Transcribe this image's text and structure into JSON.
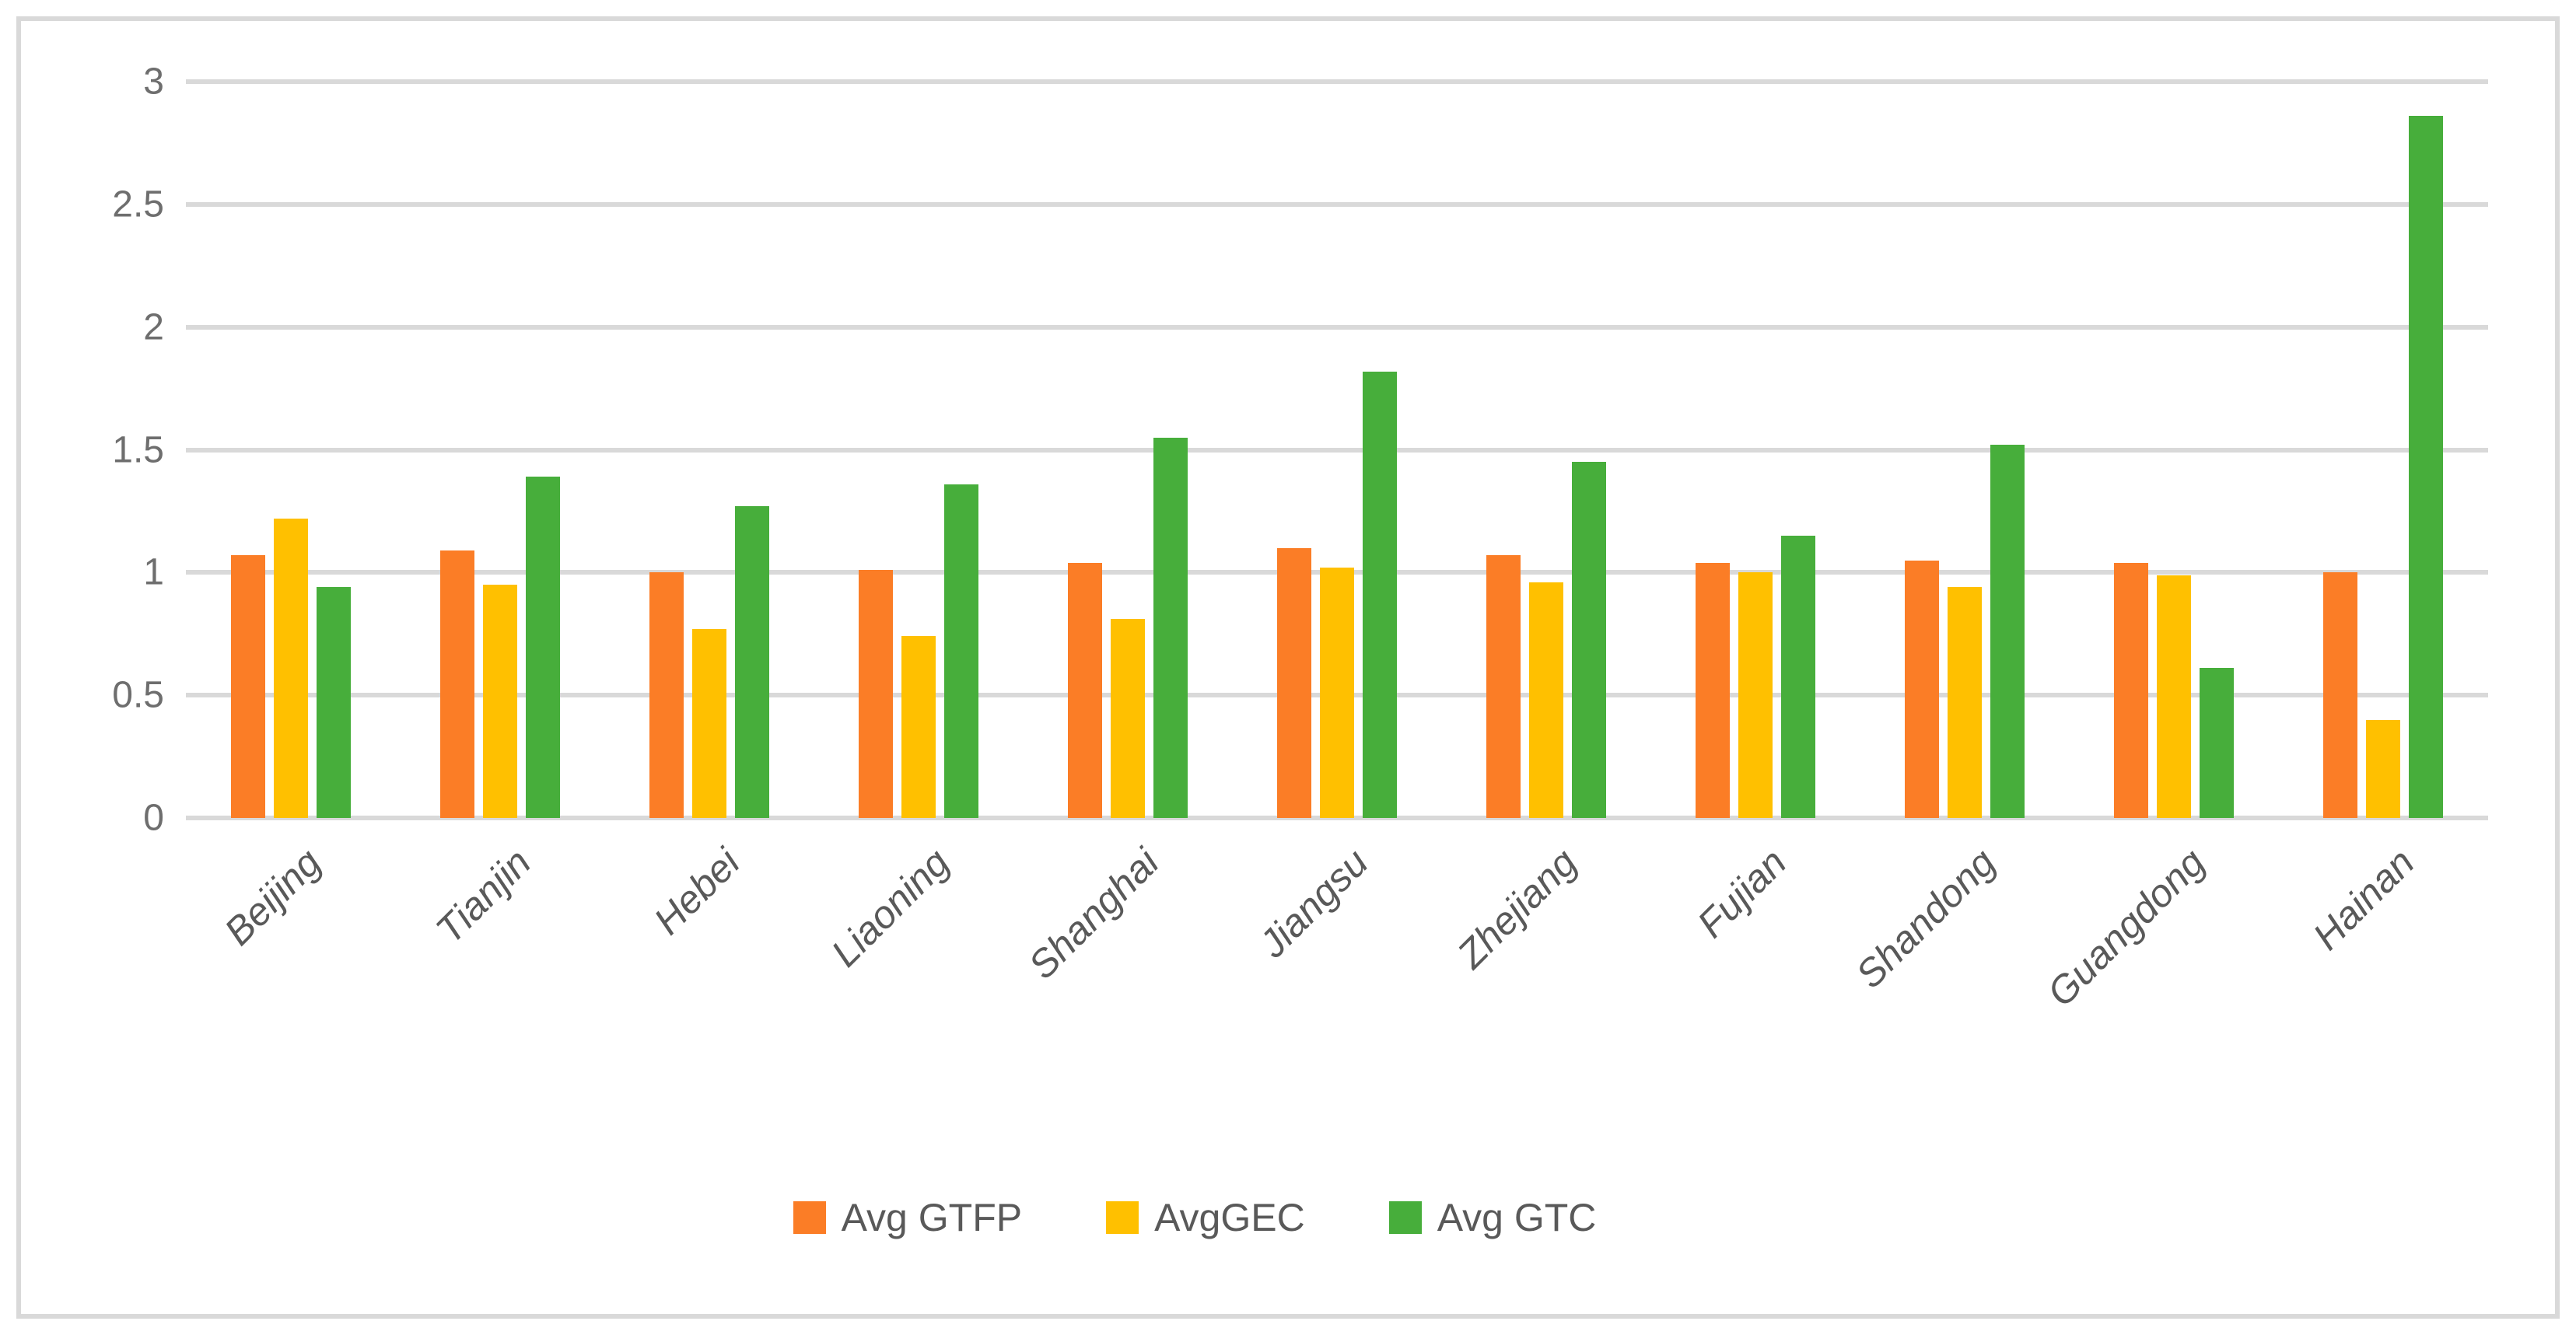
{
  "figure": {
    "background_color": "#ffffff",
    "border_color": "#d9d9d9"
  },
  "chart_data": {
    "type": "bar",
    "title": "",
    "xlabel": "",
    "ylabel": "",
    "categories": [
      "Beijing",
      "Tianjin",
      "Hebei",
      "Liaoning",
      "Shanghai",
      "Jiangsu",
      "Zhejiang",
      "Fujian",
      "Shandong",
      "Guangdong",
      "Hainan"
    ],
    "series": [
      {
        "name": "Avg GTFP",
        "color": "#fb7d26",
        "values": [
          1.07,
          1.09,
          1.0,
          1.01,
          1.04,
          1.1,
          1.07,
          1.04,
          1.05,
          1.04,
          1.0
        ]
      },
      {
        "name": "AvgGEC",
        "color": "#ffc000",
        "values": [
          1.22,
          0.95,
          0.77,
          0.74,
          0.81,
          1.02,
          0.96,
          1.0,
          0.94,
          0.99,
          0.4
        ]
      },
      {
        "name": "Avg GTC",
        "color": "#47ae3b",
        "values": [
          0.94,
          1.39,
          1.27,
          1.36,
          1.55,
          1.82,
          1.45,
          1.15,
          1.52,
          0.61,
          2.86
        ]
      }
    ],
    "ylim": [
      0,
      3
    ],
    "yticks": [
      0,
      0.5,
      1,
      1.5,
      2,
      2.5,
      3
    ],
    "ytick_labels": [
      "0",
      "0.5",
      "1",
      "1.5",
      "2",
      "2.5",
      "3"
    ],
    "grid": true,
    "gridline_color": "#d9d9d9",
    "axis_tick_color": "#6e6e6e",
    "category_label_color": "#595959",
    "legend_position": "bottom",
    "legend_text_color": "#595959"
  }
}
